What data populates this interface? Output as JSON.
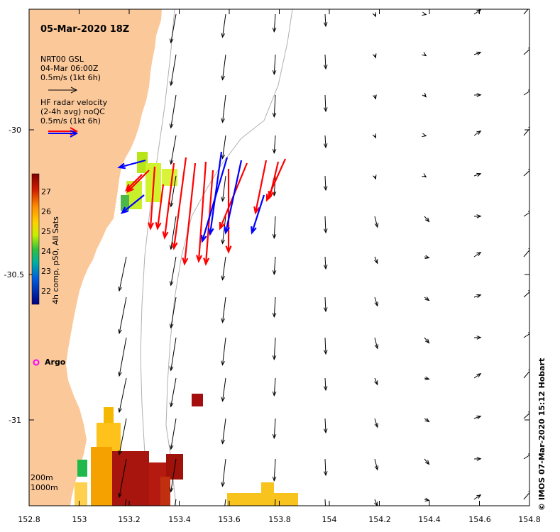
{
  "map": {
    "title": "05-Mar-2020 18Z",
    "footer": "© IMOS 07-Mar-2020 15:12 Hobart",
    "x_ticks": [
      "152.8",
      "153",
      "153.2",
      "153.4",
      "153.6",
      "153.8",
      "154",
      "154.2",
      "154.4",
      "154.6",
      "154.8"
    ],
    "y_ticks": [
      "-30",
      "-30.5",
      "-31"
    ],
    "model_legend": {
      "line1": "NRT00 GSL",
      "line2": "04-Mar 06:00Z",
      "line3": "0.5m/s (1kt 6h)"
    },
    "radar_legend": {
      "line1": "HF radar velocity",
      "line2": "(2-4h avg) noQC",
      "line3": "0.5m/s (1kt 6h)"
    },
    "colorbar": {
      "label": "4h comp, p50, All Sats",
      "ticks": [
        "27",
        "26",
        "25",
        "24",
        "23",
        "22"
      ]
    },
    "depth_contours": [
      "200m",
      "1000m"
    ],
    "argo_label": "Argo",
    "colors": {
      "land": "#FBC89A",
      "model_arrow": "#000000",
      "radar_red": "#FF0000",
      "radar_blue": "#0000FF",
      "argo": "#FF00FF",
      "contour": "#B0B0B0"
    }
  }
}
